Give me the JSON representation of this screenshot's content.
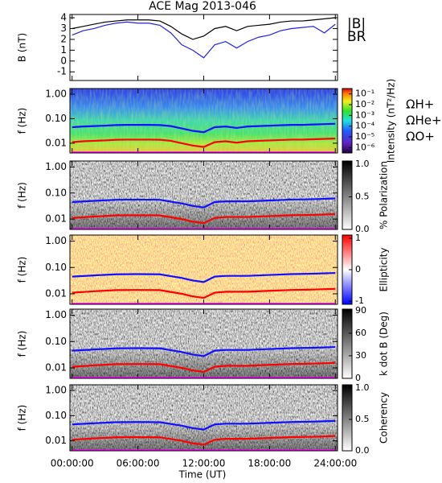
{
  "title": "ACE Mag 2013-046",
  "xlabel": "Time (UT)",
  "chart_data": [
    {
      "type": "line",
      "ylabel": "B (nT)",
      "xlim": [
        -0.2,
        24.2
      ],
      "ylim": [
        -1.8,
        4.3
      ],
      "yticks": [
        -1,
        0,
        1,
        2,
        3,
        4
      ],
      "x": [
        0,
        1,
        2,
        3,
        4,
        5,
        6,
        7,
        8,
        9,
        10,
        11,
        12,
        13,
        14,
        15,
        16,
        17,
        18,
        19,
        20,
        21,
        22,
        23,
        24
      ],
      "series": [
        {
          "name": "|B|",
          "color": "#000000",
          "values": [
            3.0,
            3.2,
            3.4,
            3.6,
            3.7,
            3.8,
            3.8,
            3.8,
            3.7,
            3.2,
            2.5,
            2.0,
            2.3,
            3.0,
            3.2,
            2.8,
            3.2,
            3.3,
            3.4,
            3.6,
            3.7,
            3.7,
            3.8,
            3.9,
            4.0
          ]
        },
        {
          "name": "BR",
          "color": "#2020e0",
          "values": [
            2.4,
            2.8,
            3.0,
            3.3,
            3.5,
            3.6,
            3.5,
            3.5,
            3.3,
            2.6,
            1.5,
            1.0,
            0.3,
            1.5,
            1.8,
            1.2,
            1.8,
            2.2,
            2.4,
            2.8,
            3.0,
            3.1,
            3.2,
            2.6,
            3.4
          ]
        }
      ]
    },
    {
      "type": "line",
      "ylabel": "f (Hz)",
      "log": true,
      "xlim": [
        -0.2,
        24.2
      ],
      "ylim": [
        0.004,
        1.7
      ],
      "yticks": [
        {
          "value": 1,
          "label": "1.00"
        },
        {
          "value": 0.1,
          "label": "0.10"
        },
        {
          "value": 0.01,
          "label": "0.01"
        }
      ],
      "colorbar": {
        "label": "Intensity (nT²/Hz)",
        "lim": [
          -6.5,
          -0.5
        ],
        "ticks": [
          {
            "value": -1,
            "label": "10⁻¹"
          },
          {
            "value": -2,
            "label": "10⁻²"
          },
          {
            "value": -3,
            "label": "10⁻³"
          },
          {
            "value": -4,
            "label": "10⁻⁴"
          },
          {
            "value": -5,
            "label": "10⁻⁵"
          },
          {
            "value": -6,
            "label": "10⁻⁶"
          }
        ]
      },
      "x": [
        0,
        1,
        2,
        3,
        4,
        5,
        6,
        7,
        8,
        9,
        10,
        11,
        12,
        13,
        14,
        15,
        16,
        17,
        18,
        19,
        20,
        21,
        22,
        23,
        24
      ],
      "series": [
        {
          "name": "ΩH+",
          "color": "#1010ff",
          "values": [
            0.045,
            0.048,
            0.05,
            0.052,
            0.055,
            0.056,
            0.056,
            0.056,
            0.055,
            0.05,
            0.04,
            0.032,
            0.028,
            0.045,
            0.048,
            0.042,
            0.048,
            0.05,
            0.052,
            0.054,
            0.056,
            0.056,
            0.058,
            0.06,
            0.062
          ]
        },
        {
          "name": "ΩHe+",
          "color": "#ff0000",
          "values": [
            0.011,
            0.012,
            0.0125,
            0.013,
            0.0138,
            0.014,
            0.014,
            0.014,
            0.0138,
            0.0125,
            0.01,
            0.008,
            0.007,
            0.011,
            0.012,
            0.0105,
            0.012,
            0.0125,
            0.013,
            0.0135,
            0.014,
            0.014,
            0.0145,
            0.015,
            0.0155
          ]
        },
        {
          "name": "ΩO+",
          "color": "#ff00ff",
          "values": [
            0.0042,
            0.0042,
            0.0042,
            0.0042,
            0.0042,
            0.0042,
            0.0042,
            0.0042,
            0.0042,
            0.0042,
            0.0042,
            0.0042,
            0.0042,
            0.0042,
            0.0042,
            0.0042,
            0.0042,
            0.0042,
            0.0042,
            0.0042,
            0.0042,
            0.0042,
            0.0042,
            0.0042,
            0.0042
          ]
        }
      ]
    },
    {
      "type": "line",
      "ylabel": "f (Hz)",
      "log": true,
      "xlim": [
        -0.2,
        24.2
      ],
      "ylim": [
        0.004,
        1.7
      ],
      "yticks": [
        {
          "value": 1,
          "label": "1.00"
        },
        {
          "value": 0.1,
          "label": "0.10"
        },
        {
          "value": 0.01,
          "label": "0.01"
        }
      ],
      "colorbar": {
        "label": "% Polarization",
        "lim": [
          0,
          1.05
        ],
        "ticks": [
          {
            "value": 0,
            "label": "0.0"
          },
          {
            "value": 0.5,
            "label": "0.5"
          },
          {
            "value": 1,
            "label": "1.0"
          }
        ]
      },
      "x": [
        0,
        2,
        4,
        6,
        8,
        10,
        11,
        12,
        13,
        14,
        16,
        18,
        20,
        22,
        24
      ],
      "series": [
        {
          "color": "#1010ff",
          "values": [
            0.045,
            0.05,
            0.055,
            0.056,
            0.055,
            0.04,
            0.032,
            0.028,
            0.045,
            0.048,
            0.048,
            0.052,
            0.056,
            0.058,
            0.062
          ]
        },
        {
          "color": "#ff0000",
          "values": [
            0.011,
            0.0125,
            0.0138,
            0.014,
            0.0138,
            0.01,
            0.008,
            0.007,
            0.011,
            0.012,
            0.012,
            0.013,
            0.014,
            0.0145,
            0.0155
          ]
        },
        {
          "color": "#ff00ff",
          "values": [
            0.0042,
            0.0042,
            0.0042,
            0.0042,
            0.0042,
            0.0042,
            0.0042,
            0.0042,
            0.0042,
            0.0042,
            0.0042,
            0.0042,
            0.0042,
            0.0042,
            0.0042
          ]
        }
      ]
    },
    {
      "type": "line",
      "ylabel": "f (Hz)",
      "log": true,
      "xlim": [
        -0.2,
        24.2
      ],
      "ylim": [
        0.004,
        1.7
      ],
      "yticks": [
        {
          "value": 1,
          "label": "1.00"
        },
        {
          "value": 0.1,
          "label": "0.10"
        },
        {
          "value": 0.01,
          "label": "0.01"
        }
      ],
      "colorbar": {
        "label": "Ellipticity",
        "lim": [
          -1.1,
          1.1
        ],
        "ticks": [
          -1,
          0,
          1
        ]
      },
      "x": [
        0,
        2,
        4,
        6,
        8,
        10,
        11,
        12,
        13,
        14,
        16,
        18,
        20,
        22,
        24
      ],
      "series": [
        {
          "color": "#1010ff",
          "values": [
            0.045,
            0.05,
            0.055,
            0.056,
            0.055,
            0.04,
            0.032,
            0.028,
            0.045,
            0.048,
            0.048,
            0.052,
            0.056,
            0.058,
            0.062
          ]
        },
        {
          "color": "#ff0000",
          "values": [
            0.011,
            0.0125,
            0.0138,
            0.014,
            0.0138,
            0.01,
            0.008,
            0.007,
            0.011,
            0.012,
            0.012,
            0.013,
            0.014,
            0.0145,
            0.0155
          ]
        },
        {
          "color": "#ff00ff",
          "values": [
            0.0042,
            0.0042,
            0.0042,
            0.0042,
            0.0042,
            0.0042,
            0.0042,
            0.0042,
            0.0042,
            0.0042,
            0.0042,
            0.0042,
            0.0042,
            0.0042,
            0.0042
          ]
        }
      ]
    },
    {
      "type": "line",
      "ylabel": "f (Hz)",
      "log": true,
      "xlim": [
        -0.2,
        24.2
      ],
      "ylim": [
        0.004,
        1.7
      ],
      "yticks": [
        {
          "value": 1,
          "label": "1.00"
        },
        {
          "value": 0.1,
          "label": "0.10"
        },
        {
          "value": 0.01,
          "label": "0.01"
        }
      ],
      "colorbar": {
        "label": "k dot B (Deg)",
        "lim": [
          0,
          92
        ],
        "ticks": [
          0,
          30,
          60,
          90
        ]
      },
      "x": [
        0,
        2,
        4,
        6,
        8,
        10,
        11,
        12,
        13,
        14,
        16,
        18,
        20,
        22,
        24
      ],
      "series": [
        {
          "color": "#1010ff",
          "values": [
            0.045,
            0.05,
            0.055,
            0.056,
            0.055,
            0.04,
            0.032,
            0.028,
            0.045,
            0.048,
            0.048,
            0.052,
            0.056,
            0.058,
            0.062
          ]
        },
        {
          "color": "#ff0000",
          "values": [
            0.011,
            0.0125,
            0.0138,
            0.014,
            0.0138,
            0.01,
            0.008,
            0.007,
            0.011,
            0.012,
            0.012,
            0.013,
            0.014,
            0.0145,
            0.0155
          ]
        },
        {
          "color": "#ff00ff",
          "values": [
            0.0042,
            0.0042,
            0.0042,
            0.0042,
            0.0042,
            0.0042,
            0.0042,
            0.0042,
            0.0042,
            0.0042,
            0.0042,
            0.0042,
            0.0042,
            0.0042,
            0.0042
          ]
        }
      ]
    },
    {
      "type": "line",
      "ylabel": "f (Hz)",
      "log": true,
      "xlim": [
        -0.2,
        24.2
      ],
      "ylim": [
        0.004,
        1.7
      ],
      "yticks": [
        {
          "value": 1,
          "label": "1.00"
        },
        {
          "value": 0.1,
          "label": "0.10"
        },
        {
          "value": 0.01,
          "label": "0.01"
        }
      ],
      "colorbar": {
        "label": "Coherency",
        "lim": [
          0,
          1.05
        ],
        "ticks": [
          {
            "value": 0,
            "label": "0.0"
          },
          {
            "value": 0.5,
            "label": "0.5"
          },
          {
            "value": 1,
            "label": "1.0"
          }
        ]
      },
      "xticks": [
        {
          "value": 0,
          "label": "00:00:00"
        },
        {
          "value": 6,
          "label": "06:00:00"
        },
        {
          "value": 12,
          "label": "12:00:00"
        },
        {
          "value": 18,
          "label": "18:00:00"
        },
        {
          "value": 24,
          "label": "24:00:00"
        }
      ],
      "x": [
        0,
        2,
        4,
        6,
        8,
        10,
        11,
        12,
        13,
        14,
        16,
        18,
        20,
        22,
        24
      ],
      "series": [
        {
          "color": "#1010ff",
          "values": [
            0.045,
            0.05,
            0.055,
            0.056,
            0.055,
            0.04,
            0.032,
            0.028,
            0.045,
            0.048,
            0.048,
            0.052,
            0.056,
            0.058,
            0.062
          ]
        },
        {
          "color": "#ff0000",
          "values": [
            0.011,
            0.0125,
            0.0138,
            0.014,
            0.0138,
            0.01,
            0.008,
            0.007,
            0.011,
            0.012,
            0.012,
            0.013,
            0.014,
            0.0145,
            0.0155
          ]
        },
        {
          "color": "#ff00ff",
          "values": [
            0.0042,
            0.0042,
            0.0042,
            0.0042,
            0.0042,
            0.0042,
            0.0042,
            0.0042,
            0.0042,
            0.0042,
            0.0042,
            0.0042,
            0.0042,
            0.0042,
            0.0042
          ]
        }
      ]
    }
  ]
}
